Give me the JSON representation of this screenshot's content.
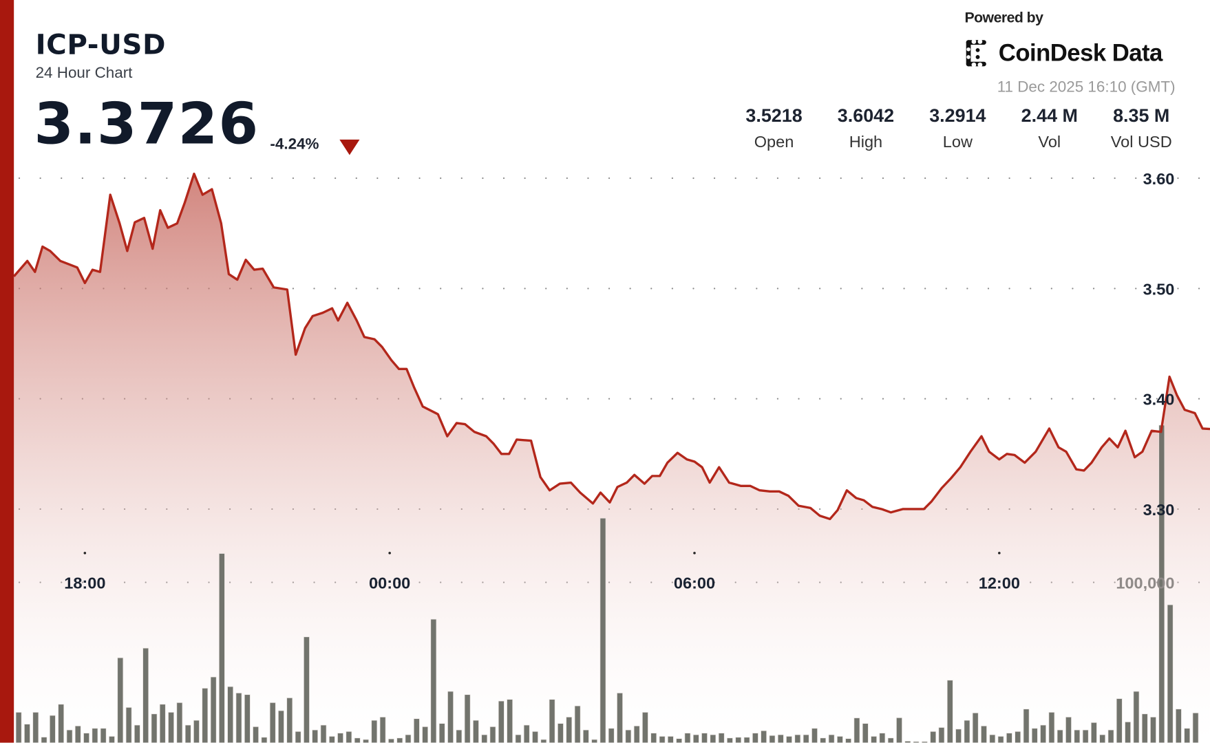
{
  "header": {
    "symbol": "ICP-USD",
    "subtitle": "24 Hour Chart",
    "price": "3.3726",
    "change": "-4.24%",
    "change_direction": "down",
    "powered_by": "Powered by",
    "brand": "CoinDesk Data",
    "brand_icon": "coindesk-logo-icon",
    "timestamp": "11 Dec 2025 16:10 (GMT)"
  },
  "stats": [
    {
      "value": "3.5218",
      "label": "Open"
    },
    {
      "value": "3.6042",
      "label": "High"
    },
    {
      "value": "3.2914",
      "label": "Low"
    },
    {
      "value": "2.44 M",
      "label": "Vol"
    },
    {
      "value": "8.35 M",
      "label": "Vol USD"
    }
  ],
  "colors": {
    "accent": "#a8180e",
    "line": "#b3271b",
    "fill": "#c0564c",
    "volume_bars": "#6a6d65",
    "text": "#111a2a"
  },
  "chart_data": {
    "type": "area",
    "title": "",
    "xlabel": "",
    "ylabel": "",
    "grid": true,
    "grid_style": "dotted",
    "x_ticks": [
      "18:00",
      "00:00",
      "06:00",
      "12:00"
    ],
    "y_ticks": [
      "3.30",
      "3.40",
      "3.50",
      "3.60"
    ],
    "y_tick_values": [
      3.3,
      3.4,
      3.5,
      3.6
    ],
    "volume_tick": "100,000",
    "volume_tick_value": 100000,
    "price": {
      "x": [
        "16:36",
        "16:52",
        "17:01",
        "17:10",
        "17:19",
        "17:31",
        "17:51",
        "18:00",
        "18:09",
        "18:18",
        "18:30",
        "18:41",
        "18:50",
        "18:59",
        "19:10",
        "19:20",
        "19:29",
        "19:38",
        "19:49",
        "19:58",
        "20:09",
        "20:19",
        "20:30",
        "20:41",
        "20:50",
        "21:00",
        "21:10",
        "21:20",
        "21:30",
        "21:43",
        "21:59",
        "22:09",
        "22:20",
        "22:29",
        "22:41",
        "22:52",
        "22:59",
        "23:10",
        "23:21",
        "23:30",
        "23:42",
        "23:51",
        "00:02",
        "00:11",
        "00:20",
        "00:29",
        "00:39",
        "00:57",
        "01:08",
        "01:19",
        "01:29",
        "01:40",
        "01:54",
        "02:03",
        "02:12",
        "02:21",
        "02:30",
        "02:47",
        "02:58",
        "03:09",
        "03:21",
        "03:34",
        "03:45",
        "04:00",
        "04:09",
        "04:20",
        "04:29",
        "04:40",
        "04:49",
        "05:01",
        "05:10",
        "05:19",
        "05:28",
        "05:40",
        "05:51",
        "06:00",
        "06:09",
        "06:18",
        "06:29",
        "06:41",
        "06:55",
        "07:06",
        "07:17",
        "07:29",
        "07:40",
        "07:51",
        "08:03",
        "08:17",
        "08:28",
        "08:40",
        "08:49",
        "09:00",
        "09:11",
        "09:20",
        "09:30",
        "09:41",
        "09:52",
        "10:06",
        "10:20",
        "10:31",
        "10:40",
        "10:52",
        "11:03",
        "11:14",
        "11:26",
        "11:39",
        "11:48",
        "12:00",
        "12:09",
        "12:18",
        "12:30",
        "12:43",
        "12:59",
        "13:10",
        "13:19",
        "13:31",
        "13:40",
        "13:49",
        "14:01",
        "14:10",
        "14:20",
        "14:29",
        "14:40",
        "14:49",
        "15:00",
        "15:11",
        "15:21",
        "15:30",
        "15:39",
        "15:51",
        "16:00",
        "16:09"
      ],
      "y": [
        3.511,
        3.525,
        3.515,
        3.538,
        3.534,
        3.525,
        3.519,
        3.505,
        3.517,
        3.515,
        3.585,
        3.559,
        3.534,
        3.56,
        3.564,
        3.536,
        3.571,
        3.555,
        3.559,
        3.578,
        3.604,
        3.585,
        3.59,
        3.559,
        3.513,
        3.508,
        3.526,
        3.517,
        3.518,
        3.501,
        3.499,
        3.44,
        3.464,
        3.475,
        3.478,
        3.482,
        3.471,
        3.487,
        3.471,
        3.456,
        3.454,
        3.447,
        3.435,
        3.427,
        3.427,
        3.41,
        3.393,
        3.386,
        3.366,
        3.378,
        3.377,
        3.37,
        3.366,
        3.359,
        3.35,
        3.35,
        3.363,
        3.362,
        3.329,
        3.317,
        3.323,
        3.324,
        3.315,
        3.305,
        3.315,
        3.306,
        3.32,
        3.324,
        3.331,
        3.323,
        3.33,
        3.33,
        3.342,
        3.351,
        3.345,
        3.343,
        3.338,
        3.324,
        3.338,
        3.324,
        3.321,
        3.321,
        3.317,
        3.316,
        3.316,
        3.312,
        3.303,
        3.301,
        3.294,
        3.291,
        3.299,
        3.317,
        3.31,
        3.308,
        3.302,
        3.3,
        3.297,
        3.3,
        3.3,
        3.3,
        3.307,
        3.319,
        3.328,
        3.338,
        3.352,
        3.366,
        3.352,
        3.345,
        3.35,
        3.349,
        3.342,
        3.352,
        3.373,
        3.356,
        3.352,
        3.336,
        3.335,
        3.342,
        3.356,
        3.364,
        3.356,
        3.371,
        3.347,
        3.352,
        3.371,
        3.37,
        3.42,
        3.403,
        3.39,
        3.387,
        3.373,
        3.3726
      ]
    },
    "volume": {
      "x": [
        "16:40",
        "16:50",
        "17:00",
        "17:10",
        "17:20",
        "17:30",
        "17:40",
        "17:50",
        "18:00",
        "18:10",
        "18:20",
        "18:30",
        "18:40",
        "18:50",
        "19:00",
        "19:10",
        "19:20",
        "19:30",
        "19:40",
        "19:50",
        "20:00",
        "20:10",
        "20:20",
        "20:30",
        "20:40",
        "20:50",
        "21:00",
        "21:10",
        "21:20",
        "21:30",
        "21:40",
        "21:50",
        "22:00",
        "22:10",
        "22:20",
        "22:30",
        "22:40",
        "22:50",
        "23:00",
        "23:10",
        "23:20",
        "23:30",
        "23:40",
        "23:50",
        "00:00",
        "00:10",
        "00:20",
        "00:30",
        "00:40",
        "00:50",
        "01:00",
        "01:10",
        "01:20",
        "01:30",
        "01:40",
        "01:50",
        "02:00",
        "02:10",
        "02:20",
        "02:30",
        "02:40",
        "02:50",
        "03:00",
        "03:10",
        "03:20",
        "03:30",
        "03:40",
        "03:50",
        "04:00",
        "04:10",
        "04:20",
        "04:30",
        "04:40",
        "04:50",
        "05:00",
        "05:10",
        "05:20",
        "05:30",
        "05:40",
        "05:50",
        "06:00",
        "06:10",
        "06:20",
        "06:30",
        "06:40",
        "06:50",
        "07:00",
        "07:10",
        "07:20",
        "07:30",
        "07:40",
        "07:50",
        "08:00",
        "08:10",
        "08:20",
        "08:30",
        "08:40",
        "08:50",
        "09:00",
        "09:10",
        "09:20",
        "09:30",
        "09:40",
        "09:50",
        "10:00",
        "10:10",
        "10:20",
        "10:30",
        "10:40",
        "10:50",
        "11:00",
        "11:10",
        "11:20",
        "11:30",
        "11:40",
        "11:50",
        "12:00",
        "12:10",
        "12:20",
        "12:30",
        "12:40",
        "12:50",
        "13:00",
        "13:10",
        "13:20",
        "13:30",
        "13:40",
        "13:50",
        "14:00",
        "14:10",
        "14:20",
        "14:30",
        "14:40",
        "14:50",
        "15:00",
        "15:10",
        "15:20",
        "15:30",
        "15:40",
        "15:50"
      ],
      "values": [
        19000,
        11600,
        19000,
        3500,
        17000,
        24000,
        8000,
        10500,
        6000,
        9000,
        9000,
        4000,
        53000,
        22000,
        11000,
        59000,
        18000,
        24000,
        19000,
        25000,
        11000,
        14000,
        34000,
        41000,
        118000,
        35000,
        31000,
        30000,
        10000,
        3400,
        25000,
        20000,
        28000,
        7000,
        66000,
        8000,
        11000,
        4000,
        6000,
        7000,
        3000,
        2000,
        14000,
        16000,
        2400,
        3000,
        5000,
        15000,
        10000,
        77000,
        12000,
        32000,
        8000,
        30000,
        14000,
        5000,
        10000,
        26000,
        27000,
        5000,
        11000,
        7000,
        2000,
        27000,
        12000,
        16000,
        23000,
        8000,
        2000,
        140000,
        9000,
        31000,
        8000,
        10500,
        19000,
        6000,
        4000,
        4000,
        2600,
        6000,
        5000,
        6000,
        5000,
        6000,
        3000,
        3400,
        3400,
        6000,
        7500,
        4500,
        5000,
        4000,
        5000,
        5000,
        9000,
        3000,
        5000,
        4000,
        2600,
        15500,
        12000,
        4000,
        6000,
        3000,
        15600,
        1000,
        700,
        700,
        7000,
        9500,
        39000,
        8500,
        14000,
        18600,
        10500,
        5000,
        4000,
        6000,
        7000,
        21000,
        9000,
        11000,
        19000,
        8000,
        16000,
        8000,
        8000,
        12600,
        5000,
        8000,
        27500,
        13000,
        32000,
        18000,
        16000,
        198000,
        86000,
        21000,
        9000,
        18600
      ]
    }
  }
}
